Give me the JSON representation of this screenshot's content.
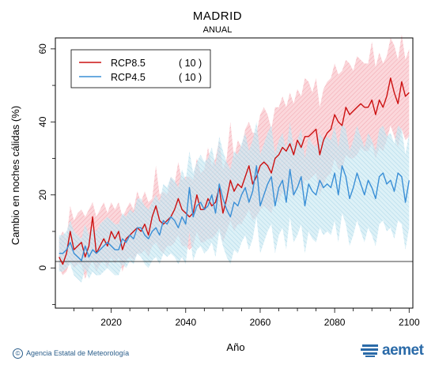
{
  "title": "MADRID",
  "subtitle": "ANUAL",
  "footer": {
    "credit": "Agencia Estatal de Meteorología",
    "logo_text": "aemet",
    "copyright_symbol": "©"
  },
  "colors": {
    "rcp85": "#cc1111",
    "rcp85_band": "#f4a8b0",
    "rcp45": "#3a8fd6",
    "rcp45_band": "#9fd2e8",
    "frame": "#000000"
  },
  "chart_data": {
    "type": "line",
    "title": "MADRID",
    "subtitle": "ANUAL",
    "xlabel": "Año",
    "ylabel": "Cambio en noches cálidas (%)",
    "xlim": [
      2005,
      2101
    ],
    "ylim": [
      -11,
      63
    ],
    "xticks": [
      2020,
      2040,
      2060,
      2080,
      2100
    ],
    "yticks": [
      0,
      20,
      40,
      60
    ],
    "grid": false,
    "legend_position": "top-left",
    "x": [
      2006,
      2007,
      2008,
      2009,
      2010,
      2011,
      2012,
      2013,
      2014,
      2015,
      2016,
      2017,
      2018,
      2019,
      2020,
      2021,
      2022,
      2023,
      2024,
      2025,
      2026,
      2027,
      2028,
      2029,
      2030,
      2031,
      2032,
      2033,
      2034,
      2035,
      2036,
      2037,
      2038,
      2039,
      2040,
      2041,
      2042,
      2043,
      2044,
      2045,
      2046,
      2047,
      2048,
      2049,
      2050,
      2051,
      2052,
      2053,
      2054,
      2055,
      2056,
      2057,
      2058,
      2059,
      2060,
      2061,
      2062,
      2063,
      2064,
      2065,
      2066,
      2067,
      2068,
      2069,
      2070,
      2071,
      2072,
      2073,
      2074,
      2075,
      2076,
      2077,
      2078,
      2079,
      2080,
      2081,
      2082,
      2083,
      2084,
      2085,
      2086,
      2087,
      2088,
      2089,
      2090,
      2091,
      2092,
      2093,
      2094,
      2095,
      2096,
      2097,
      2098,
      2099,
      2100
    ],
    "series": [
      {
        "name": "RCP8.5",
        "legend_count": "( 10 )",
        "values": [
          3,
          1,
          4,
          10,
          5,
          6,
          7,
          3,
          6,
          14,
          4,
          6,
          8,
          6,
          10,
          8,
          10,
          5,
          8,
          9,
          10,
          11,
          10,
          12,
          9,
          14,
          17,
          13,
          12,
          13,
          14,
          16,
          19,
          16,
          15,
          14,
          15,
          20,
          16,
          16,
          19,
          17,
          18,
          22,
          15,
          19,
          24,
          21,
          23,
          22,
          25,
          28,
          23,
          25,
          28,
          29,
          28,
          26,
          30,
          31,
          33,
          32,
          34,
          31,
          35,
          33,
          36,
          36,
          37,
          38,
          31,
          35,
          37,
          38,
          42,
          40,
          39,
          44,
          42,
          43,
          44,
          45,
          44,
          44,
          46,
          42,
          46,
          44,
          47,
          52,
          48,
          45,
          51,
          47,
          48
        ],
        "upper": [
          8,
          10,
          8,
          17,
          13,
          15,
          16,
          14,
          16,
          18,
          14,
          16,
          18,
          15,
          18,
          16,
          18,
          14,
          16,
          18,
          16,
          21,
          18,
          21,
          18,
          19,
          28,
          20,
          21,
          20,
          25,
          23,
          29,
          24,
          25,
          25,
          24,
          30,
          26,
          27,
          33,
          28,
          30,
          35,
          27,
          30,
          40,
          30,
          35,
          33,
          38,
          40,
          37,
          37,
          42,
          44,
          42,
          38,
          44,
          44,
          47,
          44,
          48,
          45,
          49,
          47,
          52,
          51,
          48,
          52,
          44,
          49,
          51,
          52,
          56,
          53,
          54,
          57,
          56,
          54,
          58,
          57,
          56,
          56,
          62,
          55,
          59,
          56,
          58,
          63,
          61,
          57,
          64,
          57,
          60
        ],
        "lower": [
          0,
          -2,
          -1,
          2,
          0,
          1,
          1,
          -3,
          0,
          2,
          -1,
          1,
          2,
          0,
          3,
          1,
          3,
          -1,
          2,
          3,
          2,
          4,
          4,
          5,
          3,
          6,
          7,
          5,
          4,
          6,
          6,
          7,
          9,
          6,
          6,
          5,
          6,
          10,
          7,
          7,
          8,
          8,
          9,
          11,
          7,
          10,
          13,
          10,
          12,
          12,
          14,
          16,
          13,
          14,
          16,
          17,
          16,
          15,
          19,
          18,
          21,
          20,
          22,
          19,
          23,
          21,
          24,
          24,
          25,
          26,
          20,
          23,
          25,
          26,
          30,
          27,
          27,
          31,
          30,
          30,
          31,
          33,
          32,
          32,
          34,
          30,
          33,
          32,
          35,
          39,
          36,
          33,
          38,
          35,
          36
        ]
      },
      {
        "name": "RCP4.5",
        "legend_count": "( 10 )",
        "values": [
          4,
          4,
          5,
          7,
          4,
          3,
          2,
          6,
          3,
          5,
          4,
          5,
          6,
          7,
          6,
          5,
          5,
          8,
          7,
          9,
          8,
          11,
          11,
          9,
          8,
          10,
          11,
          9,
          13,
          12,
          14,
          13,
          11,
          14,
          12,
          22,
          14,
          17,
          18,
          16,
          17,
          20,
          15,
          23,
          19,
          16,
          14,
          18,
          17,
          20,
          22,
          18,
          21,
          28,
          17,
          20,
          23,
          25,
          17,
          22,
          24,
          18,
          27,
          20,
          22,
          25,
          17,
          23,
          21,
          20,
          24,
          22,
          23,
          22,
          26,
          20,
          28,
          25,
          19,
          22,
          26,
          23,
          20,
          24,
          22,
          19,
          25,
          26,
          23,
          24,
          21,
          26,
          25,
          18,
          24
        ],
        "upper": [
          9,
          9,
          10,
          13,
          10,
          9,
          8,
          12,
          9,
          11,
          10,
          12,
          13,
          14,
          13,
          12,
          12,
          15,
          14,
          16,
          15,
          19,
          19,
          17,
          16,
          18,
          20,
          18,
          23,
          22,
          25,
          24,
          22,
          27,
          24,
          32,
          26,
          29,
          31,
          29,
          30,
          33,
          28,
          36,
          32,
          29,
          27,
          32,
          31,
          34,
          37,
          32,
          35,
          40,
          31,
          34,
          37,
          39,
          31,
          35,
          37,
          32,
          40,
          33,
          35,
          38,
          30,
          36,
          34,
          33,
          37,
          35,
          36,
          35,
          39,
          33,
          40,
          38,
          32,
          35,
          39,
          36,
          33,
          37,
          35,
          32,
          38,
          39,
          36,
          37,
          34,
          39,
          38,
          31,
          37
        ],
        "lower": [
          -1,
          -1,
          0,
          1,
          -2,
          -3,
          -4,
          0,
          -3,
          -1,
          -2,
          -2,
          -1,
          0,
          -1,
          -2,
          -2,
          1,
          0,
          2,
          1,
          4,
          3,
          1,
          0,
          2,
          3,
          1,
          4,
          3,
          4,
          3,
          1,
          3,
          1,
          10,
          2,
          5,
          6,
          4,
          5,
          7,
          3,
          10,
          6,
          3,
          1,
          5,
          4,
          7,
          9,
          5,
          8,
          14,
          4,
          7,
          10,
          12,
          4,
          9,
          11,
          5,
          14,
          7,
          9,
          12,
          4,
          10,
          8,
          7,
          11,
          9,
          10,
          9,
          13,
          7,
          15,
          12,
          6,
          9,
          13,
          10,
          7,
          11,
          9,
          6,
          12,
          13,
          10,
          11,
          8,
          13,
          12,
          5,
          11
        ]
      }
    ]
  }
}
